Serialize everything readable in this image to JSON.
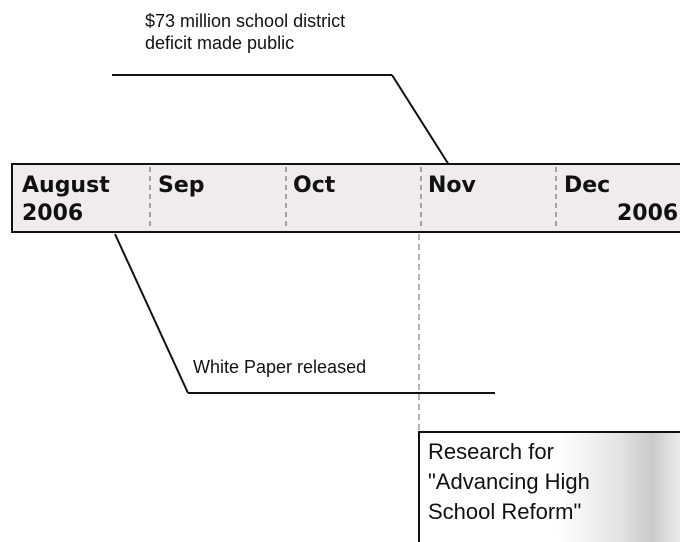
{
  "timeline": {
    "months": [
      "August",
      "Sep",
      "Oct",
      "Nov",
      "Dec"
    ],
    "start_year": "2006",
    "end_year": "2006"
  },
  "annotations": {
    "deficit_line1": "$73 million school district",
    "deficit_line2": "deficit made public",
    "white_paper": "White Paper released"
  },
  "research_box": {
    "line1": "Research for",
    "line2": "\"Advancing High",
    "line3": "School Reform\""
  }
}
